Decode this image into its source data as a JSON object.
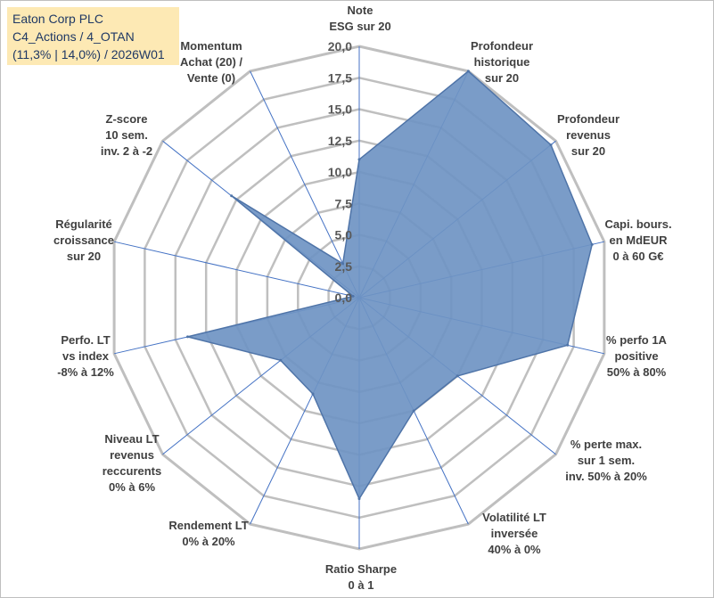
{
  "title": {
    "line1": "Eaton Corp PLC",
    "line2": "C4_Actions / 4_OTAN",
    "line3": "(11,3% | 14,0%) / 2026W01"
  },
  "colors": {
    "fill": "#6f94c3",
    "stroke": "#4f74a8",
    "grid": "#bfbfbf",
    "axis": "#4472c4",
    "title_bg": "#fde9b4",
    "title_text": "#1f3864"
  },
  "chart_data": {
    "type": "radar",
    "title": "",
    "rmin": 0,
    "rmax": 20,
    "rings": 8,
    "ticks": [
      "0,0",
      "2,5",
      "5,0",
      "7,5",
      "10,0",
      "12,5",
      "15,0",
      "17,5",
      "20,0"
    ],
    "axes": [
      {
        "label": [
          "Note",
          "ESG sur 20"
        ],
        "value": 11.0
      },
      {
        "label": [
          "Profondeur",
          "historique",
          "sur 20"
        ],
        "value": 20.0
      },
      {
        "label": [
          "Profondeur",
          "revenus",
          "sur 20"
        ],
        "value": 19.5
      },
      {
        "label": [
          "Capi. bours.",
          "en MdEUR",
          "0 à 60 G€"
        ],
        "value": 19.0
      },
      {
        "label": [
          "% perfo 1A",
          "positive",
          "50% à 80%"
        ],
        "value": 17.0
      },
      {
        "label": [
          "% perte max.",
          "sur 1 sem.",
          "inv. 50% à 20%"
        ],
        "value": 10.0
      },
      {
        "label": [
          "Volatilité LT",
          "inversée",
          "40% à 0%"
        ],
        "value": 10.0
      },
      {
        "label": [
          "Ratio Sharpe",
          "0 à 1"
        ],
        "value": 16.0
      },
      {
        "label": [
          "Rendement LT",
          "0% à 20%"
        ],
        "value": 8.5
      },
      {
        "label": [
          "Niveau LT",
          "revenus",
          "reccurents",
          "0% à 6%"
        ],
        "value": 8.0
      },
      {
        "label": [
          "Perfo. LT",
          "vs index",
          "-8% à 12%"
        ],
        "value": 14.0
      },
      {
        "label": [
          "Régularité",
          "croissance",
          "sur 20"
        ],
        "value": 0.5
      },
      {
        "label": [
          "Z-score",
          "10 sem.",
          "inv. 2 à -2"
        ],
        "value": 13.0
      },
      {
        "label": [
          "Momentum",
          "Achat (20) /",
          "Vente (0)"
        ],
        "value": 3.0
      }
    ]
  }
}
